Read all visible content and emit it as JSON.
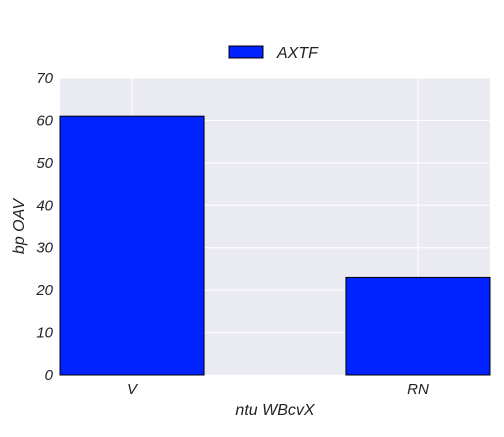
{
  "chart_data": {
    "type": "bar",
    "categories": [
      "V",
      "RN"
    ],
    "series": [
      {
        "name": "AXTF",
        "values": [
          61,
          23
        ],
        "color": "#0022ff"
      }
    ],
    "xlabel": "ntu WBcvX",
    "ylabel": "bp OAV",
    "ylim": [
      0,
      70
    ],
    "yticks": [
      0,
      10,
      20,
      30,
      40,
      50,
      60,
      70
    ],
    "grid": true,
    "legend": {
      "placement": "top-center"
    },
    "colors": {
      "plot_background": "#eaeaf2",
      "grid": "#ffffff",
      "bar_edge": "#000000"
    }
  }
}
